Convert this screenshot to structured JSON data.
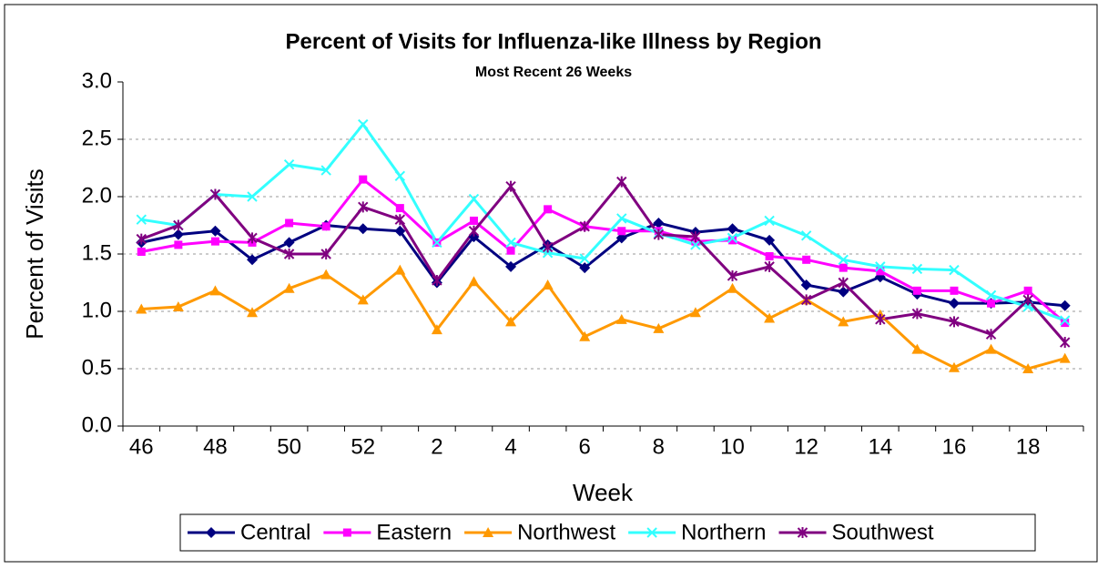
{
  "chart_data": {
    "type": "line",
    "title": "Percent of Visits for Influenza-like Illness by Region",
    "subtitle": "Most Recent 26 Weeks",
    "x_label": "Week",
    "y_label": "Percent of Visits",
    "categories": [
      "46",
      null,
      "48",
      null,
      "50",
      null,
      "52",
      null,
      "2",
      null,
      "4",
      null,
      "6",
      null,
      "8",
      null,
      "10",
      null,
      "12",
      null,
      "14",
      null,
      "16",
      null,
      "18",
      null
    ],
    "ylim": [
      0,
      3
    ],
    "yticks": [
      {
        "value": 0,
        "label": "0.0"
      },
      {
        "value": 0.5,
        "label": "0.5"
      },
      {
        "value": 1,
        "label": "1.0"
      },
      {
        "value": 1.5,
        "label": "1.5"
      },
      {
        "value": 2,
        "label": "2.0"
      },
      {
        "value": 2.5,
        "label": "2.5"
      },
      {
        "value": 3,
        "label": "3.0"
      }
    ],
    "grid": true,
    "legend": "bottom",
    "series": [
      {
        "name": "Central",
        "color": "#000080",
        "marker": "diamond",
        "values": [
          1.6,
          1.67,
          1.7,
          1.45,
          1.6,
          1.75,
          1.72,
          1.7,
          1.25,
          1.65,
          1.39,
          1.58,
          1.38,
          1.64,
          1.77,
          1.69,
          1.72,
          1.62,
          1.23,
          1.17,
          1.3,
          1.15,
          1.07,
          1.07,
          1.08,
          1.05
        ]
      },
      {
        "name": "Eastern",
        "color": "#ff00ff",
        "marker": "square",
        "values": [
          1.52,
          1.58,
          1.61,
          1.6,
          1.77,
          1.74,
          2.15,
          1.9,
          1.6,
          1.79,
          1.53,
          1.89,
          1.74,
          1.7,
          1.7,
          1.61,
          1.62,
          1.48,
          1.45,
          1.38,
          1.35,
          1.18,
          1.18,
          1.07,
          1.18,
          0.9
        ]
      },
      {
        "name": "Northwest",
        "color": "#ff9900",
        "marker": "triangle",
        "values": [
          1.02,
          1.04,
          1.18,
          0.99,
          1.2,
          1.32,
          1.1,
          1.36,
          0.84,
          1.26,
          0.91,
          1.23,
          0.78,
          0.93,
          0.85,
          0.99,
          1.2,
          0.94,
          1.1,
          0.91,
          0.97,
          0.67,
          0.51,
          0.67,
          0.5,
          0.59
        ]
      },
      {
        "name": "Northern",
        "color": "#33ffff",
        "marker": "x",
        "values": [
          1.8,
          1.75,
          2.02,
          2.0,
          2.28,
          2.23,
          2.63,
          2.18,
          1.6,
          1.98,
          1.6,
          1.51,
          1.46,
          1.81,
          1.68,
          1.58,
          1.64,
          1.79,
          1.66,
          1.45,
          1.39,
          1.37,
          1.36,
          1.14,
          1.04,
          0.92
        ]
      },
      {
        "name": "Southwest",
        "color": "#800080",
        "marker": "star",
        "values": [
          1.63,
          1.75,
          2.02,
          1.64,
          1.5,
          1.5,
          1.91,
          1.8,
          1.27,
          1.7,
          2.09,
          1.56,
          1.74,
          2.13,
          1.67,
          1.65,
          1.31,
          1.39,
          1.1,
          1.25,
          0.93,
          0.98,
          0.91,
          0.8,
          1.1,
          0.73
        ]
      }
    ]
  }
}
